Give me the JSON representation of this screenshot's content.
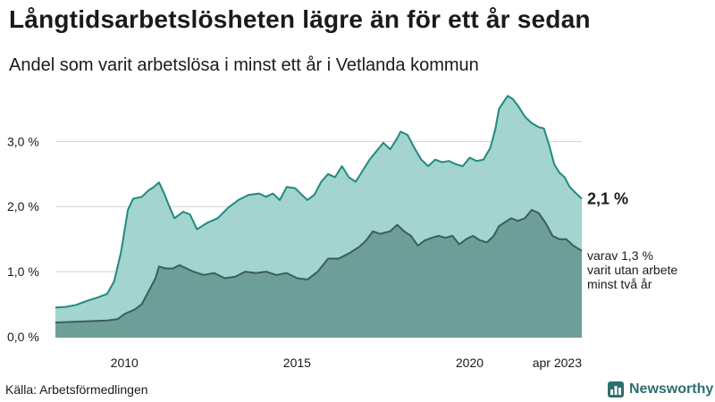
{
  "title": "Långtidsarbetslösheten lägre än för ett år sedan",
  "subtitle": "Andel som varit arbetslösa i minst ett år i Vetlanda kommun",
  "source": "Källa: Arbetsförmedlingen",
  "brand": {
    "name": "Newsworthy",
    "icon": "bar-chart-icon",
    "color": "#2e6f6e"
  },
  "chart_data": {
    "type": "area",
    "x_unit": "year",
    "ylim": [
      0,
      3.8
    ],
    "y_ticks": [
      {
        "value": 0,
        "label": "0,0 %"
      },
      {
        "value": 1,
        "label": "1,0 %"
      },
      {
        "value": 2,
        "label": "2,0 %"
      },
      {
        "value": 3,
        "label": "3,0 %"
      }
    ],
    "x_ticks": [
      {
        "value": 2010,
        "label": "2010"
      },
      {
        "value": 2015,
        "label": "2015"
      },
      {
        "value": 2020,
        "label": "2020"
      },
      {
        "value": 2023.25,
        "label": "apr 2023"
      }
    ],
    "grid": true,
    "series": [
      {
        "role": "total",
        "fill": "#a3d4cf",
        "stroke": "#1f8a7f",
        "points": [
          [
            2008.0,
            0.45
          ],
          [
            2008.3,
            0.46
          ],
          [
            2008.6,
            0.49
          ],
          [
            2008.9,
            0.55
          ],
          [
            2009.2,
            0.6
          ],
          [
            2009.5,
            0.66
          ],
          [
            2009.7,
            0.85
          ],
          [
            2009.9,
            1.3
          ],
          [
            2010.1,
            1.95
          ],
          [
            2010.25,
            2.12
          ],
          [
            2010.5,
            2.15
          ],
          [
            2010.7,
            2.25
          ],
          [
            2010.85,
            2.3
          ],
          [
            2011.0,
            2.37
          ],
          [
            2011.15,
            2.2
          ],
          [
            2011.3,
            2.0
          ],
          [
            2011.45,
            1.82
          ],
          [
            2011.7,
            1.92
          ],
          [
            2011.9,
            1.88
          ],
          [
            2012.1,
            1.65
          ],
          [
            2012.4,
            1.75
          ],
          [
            2012.7,
            1.82
          ],
          [
            2013.0,
            1.98
          ],
          [
            2013.3,
            2.1
          ],
          [
            2013.6,
            2.18
          ],
          [
            2013.9,
            2.2
          ],
          [
            2014.1,
            2.15
          ],
          [
            2014.3,
            2.2
          ],
          [
            2014.5,
            2.1
          ],
          [
            2014.7,
            2.3
          ],
          [
            2014.95,
            2.28
          ],
          [
            2015.1,
            2.2
          ],
          [
            2015.3,
            2.1
          ],
          [
            2015.5,
            2.18
          ],
          [
            2015.7,
            2.38
          ],
          [
            2015.9,
            2.5
          ],
          [
            2016.1,
            2.45
          ],
          [
            2016.3,
            2.62
          ],
          [
            2016.5,
            2.45
          ],
          [
            2016.7,
            2.38
          ],
          [
            2016.9,
            2.55
          ],
          [
            2017.1,
            2.72
          ],
          [
            2017.3,
            2.85
          ],
          [
            2017.5,
            2.98
          ],
          [
            2017.7,
            2.88
          ],
          [
            2017.9,
            3.05
          ],
          [
            2018.0,
            3.15
          ],
          [
            2018.2,
            3.1
          ],
          [
            2018.4,
            2.9
          ],
          [
            2018.6,
            2.72
          ],
          [
            2018.8,
            2.62
          ],
          [
            2019.0,
            2.72
          ],
          [
            2019.2,
            2.68
          ],
          [
            2019.4,
            2.7
          ],
          [
            2019.6,
            2.65
          ],
          [
            2019.8,
            2.62
          ],
          [
            2020.0,
            2.75
          ],
          [
            2020.2,
            2.7
          ],
          [
            2020.4,
            2.72
          ],
          [
            2020.6,
            2.9
          ],
          [
            2020.75,
            3.2
          ],
          [
            2020.85,
            3.5
          ],
          [
            2021.0,
            3.62
          ],
          [
            2021.1,
            3.7
          ],
          [
            2021.25,
            3.65
          ],
          [
            2021.4,
            3.55
          ],
          [
            2021.6,
            3.38
          ],
          [
            2021.8,
            3.28
          ],
          [
            2022.0,
            3.22
          ],
          [
            2022.15,
            3.2
          ],
          [
            2022.3,
            2.95
          ],
          [
            2022.45,
            2.65
          ],
          [
            2022.6,
            2.52
          ],
          [
            2022.75,
            2.45
          ],
          [
            2022.9,
            2.3
          ],
          [
            2023.05,
            2.22
          ],
          [
            2023.25,
            2.12
          ]
        ],
        "last_label": "2,1 %"
      },
      {
        "role": "varav",
        "fill": "#6e9e98",
        "stroke": "#3d5e5a",
        "points": [
          [
            2008.0,
            0.22
          ],
          [
            2008.5,
            0.23
          ],
          [
            2009.0,
            0.24
          ],
          [
            2009.5,
            0.25
          ],
          [
            2009.8,
            0.27
          ],
          [
            2010.0,
            0.35
          ],
          [
            2010.3,
            0.42
          ],
          [
            2010.5,
            0.5
          ],
          [
            2010.7,
            0.7
          ],
          [
            2010.9,
            0.9
          ],
          [
            2011.0,
            1.08
          ],
          [
            2011.2,
            1.05
          ],
          [
            2011.4,
            1.05
          ],
          [
            2011.6,
            1.1
          ],
          [
            2011.8,
            1.05
          ],
          [
            2012.0,
            1.0
          ],
          [
            2012.3,
            0.95
          ],
          [
            2012.6,
            0.98
          ],
          [
            2012.9,
            0.9
          ],
          [
            2013.2,
            0.92
          ],
          [
            2013.5,
            1.0
          ],
          [
            2013.8,
            0.98
          ],
          [
            2014.1,
            1.0
          ],
          [
            2014.4,
            0.95
          ],
          [
            2014.7,
            0.98
          ],
          [
            2015.0,
            0.9
          ],
          [
            2015.3,
            0.88
          ],
          [
            2015.6,
            1.0
          ],
          [
            2015.9,
            1.2
          ],
          [
            2016.2,
            1.2
          ],
          [
            2016.5,
            1.28
          ],
          [
            2016.8,
            1.38
          ],
          [
            2017.0,
            1.48
          ],
          [
            2017.2,
            1.62
          ],
          [
            2017.4,
            1.58
          ],
          [
            2017.7,
            1.62
          ],
          [
            2017.9,
            1.72
          ],
          [
            2018.1,
            1.62
          ],
          [
            2018.3,
            1.55
          ],
          [
            2018.5,
            1.4
          ],
          [
            2018.7,
            1.48
          ],
          [
            2018.9,
            1.52
          ],
          [
            2019.1,
            1.55
          ],
          [
            2019.3,
            1.52
          ],
          [
            2019.5,
            1.55
          ],
          [
            2019.7,
            1.42
          ],
          [
            2019.9,
            1.5
          ],
          [
            2020.1,
            1.55
          ],
          [
            2020.3,
            1.48
          ],
          [
            2020.5,
            1.45
          ],
          [
            2020.7,
            1.55
          ],
          [
            2020.85,
            1.7
          ],
          [
            2021.0,
            1.75
          ],
          [
            2021.2,
            1.82
          ],
          [
            2021.4,
            1.78
          ],
          [
            2021.6,
            1.82
          ],
          [
            2021.8,
            1.95
          ],
          [
            2022.0,
            1.9
          ],
          [
            2022.2,
            1.75
          ],
          [
            2022.4,
            1.55
          ],
          [
            2022.6,
            1.5
          ],
          [
            2022.8,
            1.5
          ],
          [
            2023.0,
            1.4
          ],
          [
            2023.25,
            1.32
          ]
        ],
        "last_label_lines": [
          "varav 1,3 %",
          "varit utan arbete",
          "minst två år"
        ]
      }
    ]
  }
}
